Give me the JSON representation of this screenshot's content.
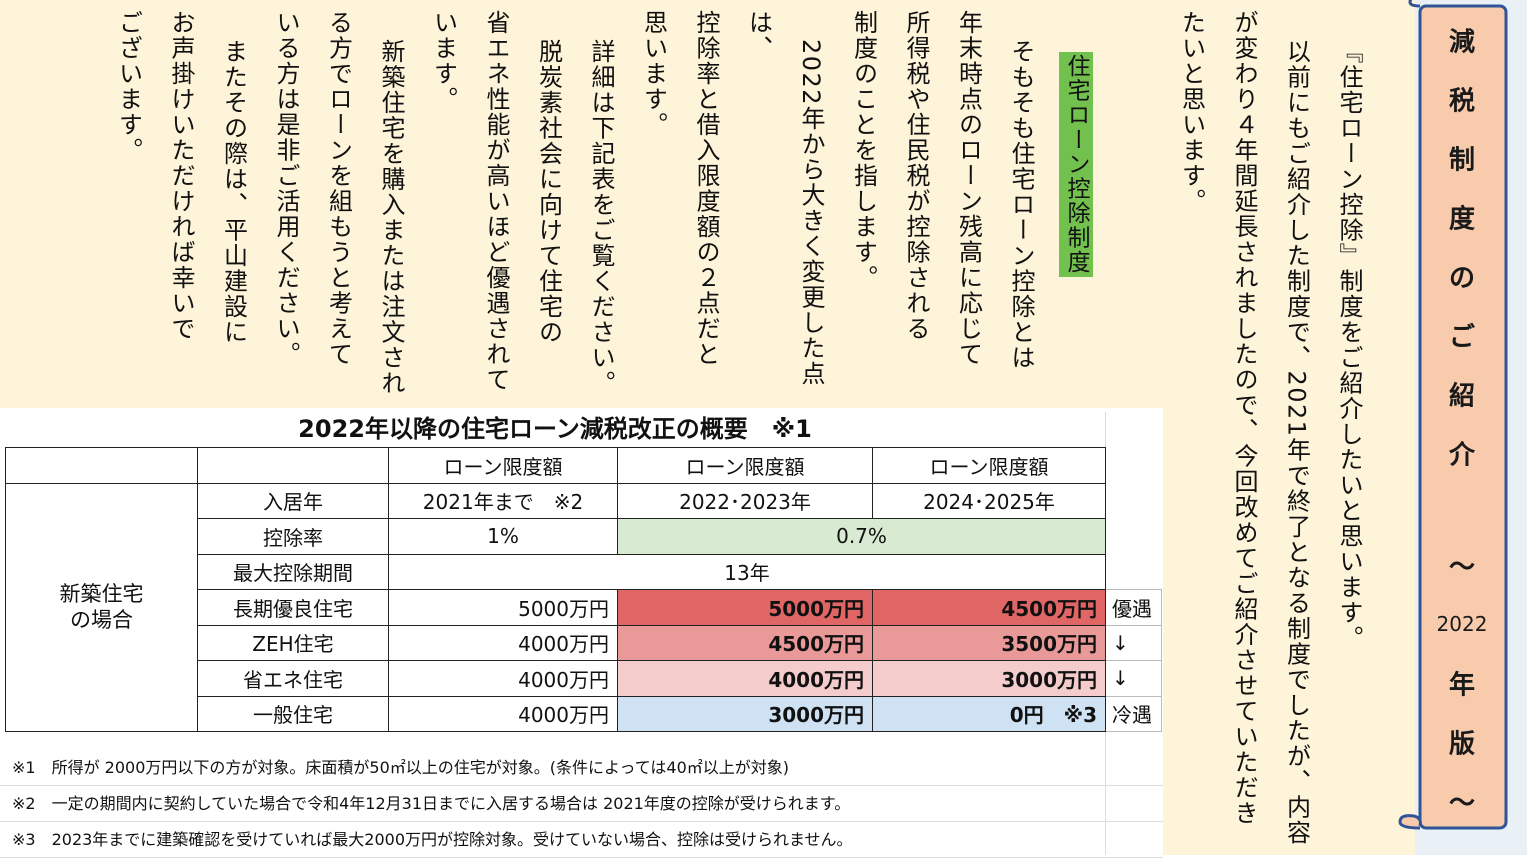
{
  "banner": {
    "glyphs": [
      "減",
      "税",
      "制",
      "度",
      "の",
      "ご",
      "紹",
      "介",
      "～",
      "2022",
      "年",
      "版",
      "～"
    ]
  },
  "intro": {
    "paragraphs": [
      [
        "『住宅ローン控除』制度をご紹介したいと思います。"
      ],
      [
        "以前にもご紹介した制度で、2021年で終了となる制度でしたが、内容",
        "が変わり４年間延長されましたので、今回改めてご紹介させていただき",
        "たいと思います。"
      ]
    ]
  },
  "body": {
    "heading": "住宅ローン控除制度",
    "paragraphs": [
      [
        "そもそも住宅ローン控除とは",
        "年末時点のローン残高に応じて",
        "所得税や住民税が控除される",
        "制度のことを指します。"
      ],
      [
        "2022年から大きく変更した点は、",
        "控除率と借入限度額の２点だと",
        "思います。"
      ],
      [
        "詳細は下記表をご覧ください。"
      ],
      [
        "脱炭素社会に向けて住宅の",
        "省エネ性能が高いほど優遇されて",
        "います。"
      ],
      [
        "新築住宅を購入または注文され",
        "る方でローンを組もうと考えて",
        "いる方は是非ご活用ください。"
      ],
      [
        "またその際は、平山建設に",
        "お声掛けいただければ幸いで",
        "ございます。"
      ]
    ]
  },
  "table": {
    "title": "2022年以降の住宅ローン減税改正の概要　※1",
    "header": [
      "ローン限度額",
      "ローン限度額",
      "ローン限度額"
    ],
    "group_label": [
      "新築住宅",
      "の場合"
    ],
    "rows": [
      {
        "label": "入居年",
        "cells": [
          "2021年まで　※2",
          "2022･2023年",
          "2024･2025年"
        ]
      },
      {
        "label": "控除率",
        "cells": [
          "1%",
          "0.7%"
        ]
      },
      {
        "label": "最大控除期間",
        "cells": [
          "13年"
        ]
      },
      {
        "label": "長期優良住宅",
        "cells": [
          "5000万円",
          "5000万円",
          "4500万円"
        ],
        "tag": "優遇"
      },
      {
        "label": "ZEH住宅",
        "cells": [
          "4000万円",
          "4500万円",
          "3500万円"
        ],
        "tag": "↓"
      },
      {
        "label": "省エネ住宅",
        "cells": [
          "4000万円",
          "4000万円",
          "3000万円"
        ],
        "tag": "↓"
      },
      {
        "label": "一般住宅",
        "cells": [
          "4000万円",
          "3000万円",
          "0円　※3"
        ],
        "tag": "冷遇"
      }
    ],
    "notes": [
      "※1　所得が 2000万円以下の方が対象。床面積が50㎡以上の住宅が対象。(条件によっては40㎡以上が対象)",
      "※2　一定の期間内に契約していた場合で令和4年12月31日までに入居する場合は 2021年度の控除が受けられます。",
      "※3　2023年までに建築確認を受けていれば最大2000万円が控除対象。受けていない場合、控除は受けられません。"
    ]
  }
}
